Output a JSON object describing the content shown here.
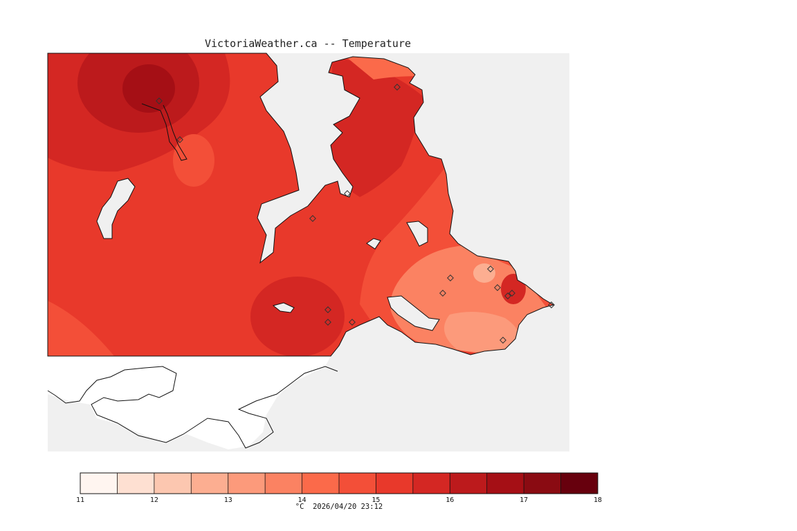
{
  "title": "VictoriaWeather.ca -- Temperature",
  "caption": "°C  2026/04/20 23:12",
  "colors": {
    "land_bg": "#e8392b",
    "water": "#f0f0f0",
    "outside": "#ffffff",
    "coast": "#111111",
    "station": "#333333"
  },
  "colorbar": {
    "min": 11,
    "max": 18,
    "ticks": [
      11,
      12,
      13,
      14,
      15,
      16,
      17,
      18
    ],
    "colors": [
      "#fff5f0",
      "#fee0d2",
      "#fcc7b0",
      "#fcae91",
      "#fc9a7b",
      "#fb8262",
      "#fb6a4a",
      "#f34f38",
      "#e8392b",
      "#d42723",
      "#bc1a1c",
      "#a50f15",
      "#8a0b12",
      "#67000d"
    ]
  },
  "contours": [
    {
      "name": "northwest-warm-zone",
      "color": "#d42723"
    },
    {
      "name": "northwest-core",
      "color": "#bc1a1c"
    },
    {
      "name": "northwest-peak",
      "color": "#a50f15"
    },
    {
      "name": "central-warm-zone",
      "color": "#d42723"
    },
    {
      "name": "saanich-warm-zone",
      "color": "#d42723"
    },
    {
      "name": "southwest-cool-zone",
      "color": "#f34f38"
    },
    {
      "name": "northwest-cool-spot",
      "color": "#f34f38"
    },
    {
      "name": "southeast-cool-zone",
      "color": "#f34f38"
    },
    {
      "name": "victoria-cool-zone",
      "color": "#fb8262"
    },
    {
      "name": "victoria-coolest",
      "color": "#fc9a7b"
    },
    {
      "name": "oak-bay-cool-spot",
      "color": "#fcae91"
    },
    {
      "name": "oak-bay-warm-spot",
      "color": "#d42723"
    },
    {
      "name": "saanich-north-cool-zone",
      "color": "#fb6a4a"
    }
  ],
  "stations": [
    {
      "lon": 230,
      "lat": 146
    },
    {
      "lon": 260,
      "lat": 202
    },
    {
      "lon": 574,
      "lat": 126
    },
    {
      "lon": 452,
      "lat": 316
    },
    {
      "lon": 502,
      "lat": 280
    },
    {
      "lon": 474,
      "lat": 448
    },
    {
      "lon": 474,
      "lat": 466
    },
    {
      "lon": 509,
      "lat": 466
    },
    {
      "lon": 651,
      "lat": 402
    },
    {
      "lon": 640,
      "lat": 424
    },
    {
      "lon": 709,
      "lat": 389
    },
    {
      "lon": 719,
      "lat": 416
    },
    {
      "lon": 734,
      "lat": 428
    },
    {
      "lon": 740,
      "lat": 424
    },
    {
      "lon": 727,
      "lat": 492
    },
    {
      "lon": 797,
      "lat": 441
    }
  ]
}
